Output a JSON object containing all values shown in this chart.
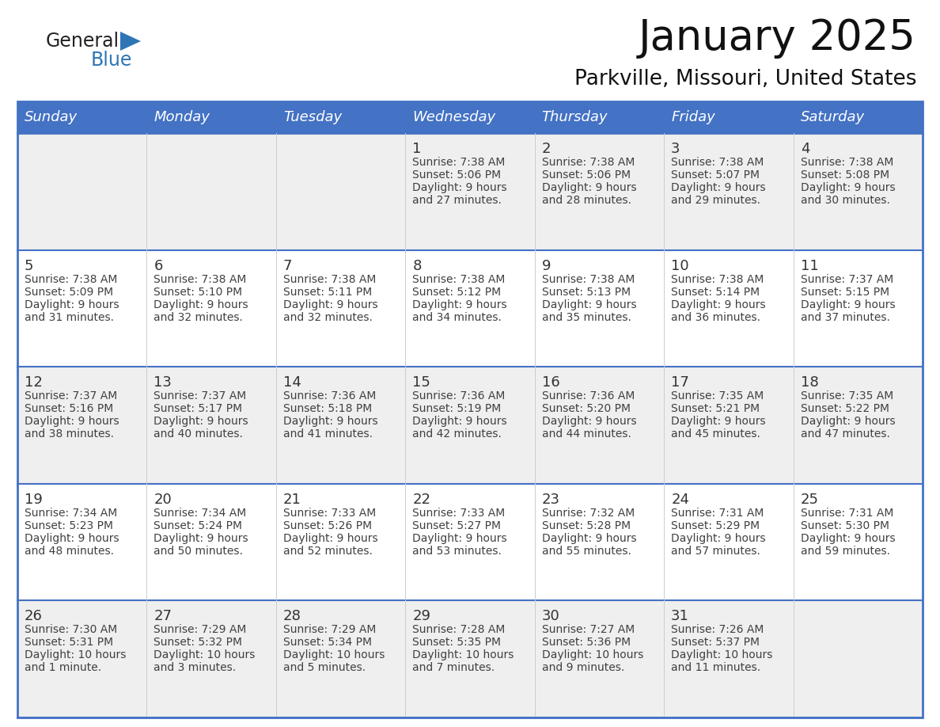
{
  "title": "January 2025",
  "subtitle": "Parkville, Missouri, United States",
  "days_of_week": [
    "Sunday",
    "Monday",
    "Tuesday",
    "Wednesday",
    "Thursday",
    "Friday",
    "Saturday"
  ],
  "header_bg": "#4472C4",
  "header_text": "#FFFFFF",
  "cell_bg_white": "#FFFFFF",
  "cell_bg_gray": "#EFEFEF",
  "grid_line_color": "#4472C4",
  "text_color": "#404040",
  "day_num_color": "#333333",
  "logo_general_color": "#222222",
  "logo_blue_color": "#2E75B6",
  "title_color": "#111111",
  "calendar": [
    [
      null,
      null,
      null,
      {
        "day": 1,
        "sunrise": "7:38 AM",
        "sunset": "5:06 PM",
        "daylight": "9 hours",
        "daylight2": "and 27 minutes."
      },
      {
        "day": 2,
        "sunrise": "7:38 AM",
        "sunset": "5:06 PM",
        "daylight": "9 hours",
        "daylight2": "and 28 minutes."
      },
      {
        "day": 3,
        "sunrise": "7:38 AM",
        "sunset": "5:07 PM",
        "daylight": "9 hours",
        "daylight2": "and 29 minutes."
      },
      {
        "day": 4,
        "sunrise": "7:38 AM",
        "sunset": "5:08 PM",
        "daylight": "9 hours",
        "daylight2": "and 30 minutes."
      }
    ],
    [
      {
        "day": 5,
        "sunrise": "7:38 AM",
        "sunset": "5:09 PM",
        "daylight": "9 hours",
        "daylight2": "and 31 minutes."
      },
      {
        "day": 6,
        "sunrise": "7:38 AM",
        "sunset": "5:10 PM",
        "daylight": "9 hours",
        "daylight2": "and 32 minutes."
      },
      {
        "day": 7,
        "sunrise": "7:38 AM",
        "sunset": "5:11 PM",
        "daylight": "9 hours",
        "daylight2": "and 32 minutes."
      },
      {
        "day": 8,
        "sunrise": "7:38 AM",
        "sunset": "5:12 PM",
        "daylight": "9 hours",
        "daylight2": "and 34 minutes."
      },
      {
        "day": 9,
        "sunrise": "7:38 AM",
        "sunset": "5:13 PM",
        "daylight": "9 hours",
        "daylight2": "and 35 minutes."
      },
      {
        "day": 10,
        "sunrise": "7:38 AM",
        "sunset": "5:14 PM",
        "daylight": "9 hours",
        "daylight2": "and 36 minutes."
      },
      {
        "day": 11,
        "sunrise": "7:37 AM",
        "sunset": "5:15 PM",
        "daylight": "9 hours",
        "daylight2": "and 37 minutes."
      }
    ],
    [
      {
        "day": 12,
        "sunrise": "7:37 AM",
        "sunset": "5:16 PM",
        "daylight": "9 hours",
        "daylight2": "and 38 minutes."
      },
      {
        "day": 13,
        "sunrise": "7:37 AM",
        "sunset": "5:17 PM",
        "daylight": "9 hours",
        "daylight2": "and 40 minutes."
      },
      {
        "day": 14,
        "sunrise": "7:36 AM",
        "sunset": "5:18 PM",
        "daylight": "9 hours",
        "daylight2": "and 41 minutes."
      },
      {
        "day": 15,
        "sunrise": "7:36 AM",
        "sunset": "5:19 PM",
        "daylight": "9 hours",
        "daylight2": "and 42 minutes."
      },
      {
        "day": 16,
        "sunrise": "7:36 AM",
        "sunset": "5:20 PM",
        "daylight": "9 hours",
        "daylight2": "and 44 minutes."
      },
      {
        "day": 17,
        "sunrise": "7:35 AM",
        "sunset": "5:21 PM",
        "daylight": "9 hours",
        "daylight2": "and 45 minutes."
      },
      {
        "day": 18,
        "sunrise": "7:35 AM",
        "sunset": "5:22 PM",
        "daylight": "9 hours",
        "daylight2": "and 47 minutes."
      }
    ],
    [
      {
        "day": 19,
        "sunrise": "7:34 AM",
        "sunset": "5:23 PM",
        "daylight": "9 hours",
        "daylight2": "and 48 minutes."
      },
      {
        "day": 20,
        "sunrise": "7:34 AM",
        "sunset": "5:24 PM",
        "daylight": "9 hours",
        "daylight2": "and 50 minutes."
      },
      {
        "day": 21,
        "sunrise": "7:33 AM",
        "sunset": "5:26 PM",
        "daylight": "9 hours",
        "daylight2": "and 52 minutes."
      },
      {
        "day": 22,
        "sunrise": "7:33 AM",
        "sunset": "5:27 PM",
        "daylight": "9 hours",
        "daylight2": "and 53 minutes."
      },
      {
        "day": 23,
        "sunrise": "7:32 AM",
        "sunset": "5:28 PM",
        "daylight": "9 hours",
        "daylight2": "and 55 minutes."
      },
      {
        "day": 24,
        "sunrise": "7:31 AM",
        "sunset": "5:29 PM",
        "daylight": "9 hours",
        "daylight2": "and 57 minutes."
      },
      {
        "day": 25,
        "sunrise": "7:31 AM",
        "sunset": "5:30 PM",
        "daylight": "9 hours",
        "daylight2": "and 59 minutes."
      }
    ],
    [
      {
        "day": 26,
        "sunrise": "7:30 AM",
        "sunset": "5:31 PM",
        "daylight": "10 hours",
        "daylight2": "and 1 minute."
      },
      {
        "day": 27,
        "sunrise": "7:29 AM",
        "sunset": "5:32 PM",
        "daylight": "10 hours",
        "daylight2": "and 3 minutes."
      },
      {
        "day": 28,
        "sunrise": "7:29 AM",
        "sunset": "5:34 PM",
        "daylight": "10 hours",
        "daylight2": "and 5 minutes."
      },
      {
        "day": 29,
        "sunrise": "7:28 AM",
        "sunset": "5:35 PM",
        "daylight": "10 hours",
        "daylight2": "and 7 minutes."
      },
      {
        "day": 30,
        "sunrise": "7:27 AM",
        "sunset": "5:36 PM",
        "daylight": "10 hours",
        "daylight2": "and 9 minutes."
      },
      {
        "day": 31,
        "sunrise": "7:26 AM",
        "sunset": "5:37 PM",
        "daylight": "10 hours",
        "daylight2": "and 11 minutes."
      },
      null
    ]
  ]
}
